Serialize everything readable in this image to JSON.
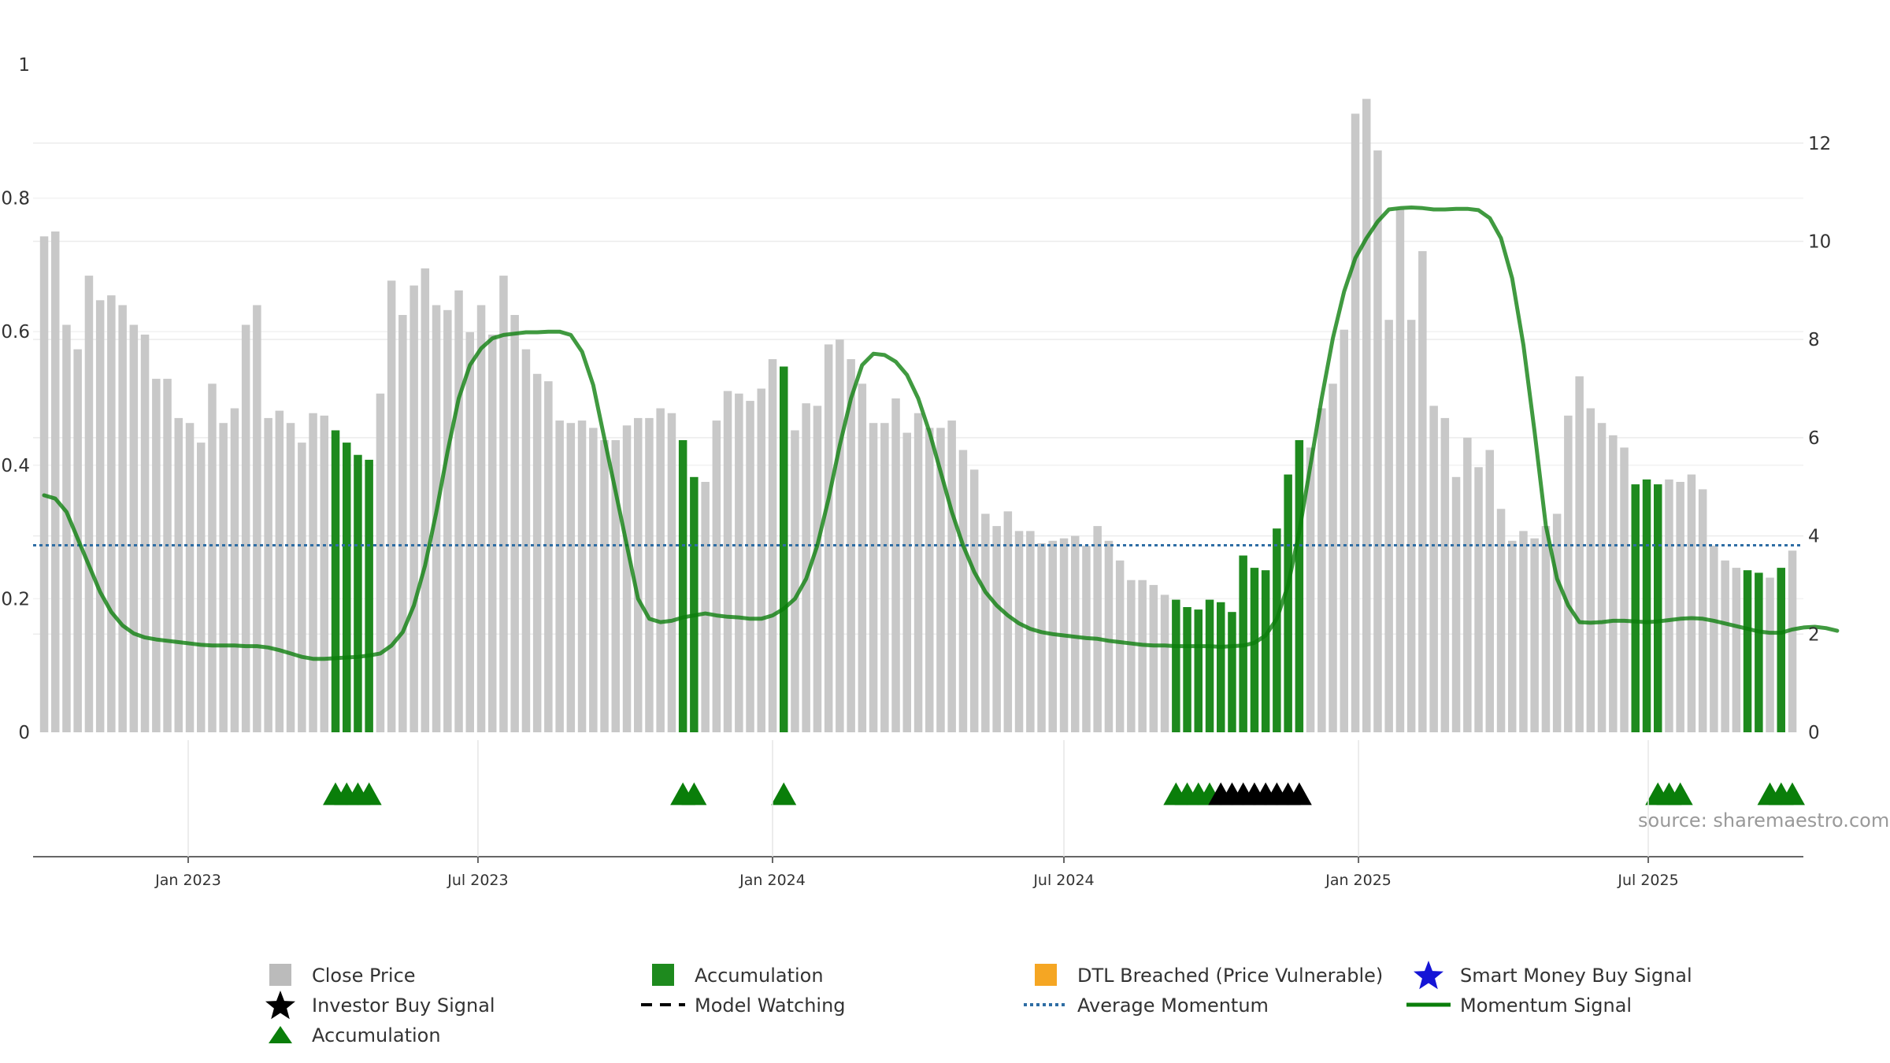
{
  "chart_data": {
    "type": "bar",
    "source": "source: sharemaestro.com",
    "left_axis": {
      "ticks": [
        "0",
        "0.2",
        "0.4",
        "0.6",
        "0.8",
        "1"
      ],
      "range": [
        0,
        1
      ]
    },
    "right_axis": {
      "ticks": [
        "0",
        "2",
        "4",
        "6",
        "8",
        "10",
        "12"
      ],
      "range": [
        0,
        13.6
      ]
    },
    "x_axis": {
      "labels": [
        "Jan 2023",
        "Jul 2023",
        "Jan 2024",
        "Jul 2024",
        "Jan 2025",
        "Jul 2025"
      ],
      "label_dates": [
        "2023-01-01",
        "2023-07-01",
        "2024-01-01",
        "2024-07-01",
        "2025-01-01",
        "2025-07-01"
      ],
      "start": "2022-10-03",
      "weeks": 157
    },
    "series": [
      {
        "name": "Close Price",
        "color": "#c8c8c8",
        "accumulation_color": "#1e8a1e",
        "values": [
          10.1,
          10.2,
          8.3,
          7.8,
          9.3,
          8.8,
          8.9,
          8.7,
          8.3,
          8.1,
          7.2,
          7.2,
          6.4,
          6.3,
          5.9,
          7.1,
          6.3,
          6.6,
          8.3,
          8.7,
          6.4,
          6.55,
          6.3,
          5.9,
          6.5,
          6.45,
          6.15,
          5.9,
          5.65,
          5.55,
          6.9,
          9.2,
          8.5,
          9.1,
          9.45,
          8.7,
          8.6,
          9.0,
          8.15,
          8.7,
          8.1,
          9.3,
          8.5,
          7.8,
          7.3,
          7.15,
          6.35,
          6.3,
          6.35,
          6.2,
          5.95,
          5.95,
          6.25,
          6.4,
          6.4,
          6.6,
          6.5,
          5.95,
          5.2,
          5.1,
          6.35,
          6.95,
          6.9,
          6.75,
          7.0,
          7.6,
          7.45,
          6.15,
          6.7,
          6.65,
          7.9,
          8.0,
          7.6,
          7.1,
          6.3,
          6.3,
          6.8,
          6.1,
          6.5,
          6.2,
          6.2,
          6.35,
          5.75,
          5.35,
          4.45,
          4.2,
          4.5,
          4.1,
          4.1,
          3.85,
          3.9,
          3.95,
          4.0,
          3.8,
          4.2,
          3.9,
          3.5,
          3.1,
          3.1,
          3.0,
          2.8,
          2.7,
          2.55,
          2.5,
          2.7,
          2.65,
          2.45,
          3.6,
          3.35,
          3.3,
          4.15,
          5.25,
          5.95,
          5.8,
          6.6,
          7.1,
          8.2,
          12.6,
          12.9,
          11.85,
          8.4,
          10.65,
          8.4,
          9.8,
          6.65,
          6.4,
          5.2,
          6.0,
          5.4,
          5.75,
          4.55,
          3.9,
          4.1,
          3.95,
          4.2,
          4.45,
          6.45,
          7.25,
          6.6,
          6.3,
          6.05,
          5.8,
          5.05,
          5.15,
          5.05,
          5.15,
          5.1,
          5.25,
          4.95,
          3.8,
          3.5,
          3.35,
          3.3,
          3.25,
          3.15,
          3.35,
          3.7
        ],
        "accumulation_weeks": [
          26,
          27,
          28,
          29,
          57,
          58,
          66,
          101,
          102,
          103,
          104,
          105,
          106,
          107,
          108,
          109,
          110,
          111,
          112,
          142,
          143,
          144,
          152,
          153,
          155
        ]
      },
      {
        "name": "Momentum Signal",
        "color": "#0a7e0a",
        "values": [
          0.355,
          0.35,
          0.33,
          0.29,
          0.25,
          0.21,
          0.18,
          0.16,
          0.148,
          0.142,
          0.139,
          0.137,
          0.135,
          0.133,
          0.131,
          0.13,
          0.13,
          0.13,
          0.129,
          0.129,
          0.127,
          0.123,
          0.118,
          0.113,
          0.11,
          0.11,
          0.111,
          0.112,
          0.113,
          0.115,
          0.118,
          0.13,
          0.15,
          0.19,
          0.25,
          0.33,
          0.42,
          0.5,
          0.55,
          0.575,
          0.59,
          0.595,
          0.597,
          0.599,
          0.599,
          0.6,
          0.6,
          0.595,
          0.57,
          0.52,
          0.44,
          0.36,
          0.28,
          0.2,
          0.17,
          0.165,
          0.167,
          0.172,
          0.175,
          0.178,
          0.175,
          0.173,
          0.172,
          0.17,
          0.17,
          0.175,
          0.185,
          0.2,
          0.23,
          0.28,
          0.35,
          0.43,
          0.5,
          0.55,
          0.567,
          0.565,
          0.555,
          0.535,
          0.5,
          0.45,
          0.39,
          0.33,
          0.28,
          0.24,
          0.21,
          0.19,
          0.175,
          0.163,
          0.155,
          0.15,
          0.147,
          0.145,
          0.143,
          0.141,
          0.14,
          0.137,
          0.135,
          0.133,
          0.131,
          0.13,
          0.13,
          0.129,
          0.129,
          0.129,
          0.129,
          0.128,
          0.129,
          0.13,
          0.134,
          0.145,
          0.17,
          0.22,
          0.3,
          0.4,
          0.5,
          0.59,
          0.66,
          0.71,
          0.74,
          0.765,
          0.783,
          0.785,
          0.786,
          0.785,
          0.783,
          0.783,
          0.784,
          0.784,
          0.782,
          0.77,
          0.74,
          0.68,
          0.58,
          0.45,
          0.31,
          0.23,
          0.19,
          0.165,
          0.164,
          0.165,
          0.167,
          0.167,
          0.166,
          0.165,
          0.166,
          0.168,
          0.17,
          0.171,
          0.17,
          0.167,
          0.163,
          0.159,
          0.155,
          0.151,
          0.149,
          0.149,
          0.154,
          0.157,
          0.158,
          0.156,
          0.152
        ]
      },
      {
        "name": "Average Momentum",
        "color": "#2e6da4",
        "value": 0.28
      }
    ],
    "markers": {
      "accumulation_triangles": [
        26,
        27,
        28,
        29,
        57,
        58,
        66,
        101,
        102,
        103,
        104,
        144,
        145,
        146,
        154,
        155,
        157
      ],
      "investor_buy_stars": [
        105,
        106,
        107,
        108,
        109,
        110,
        111,
        112
      ]
    },
    "legend": [
      {
        "label": "Close Price",
        "symbol": "gray-square",
        "color": "#bbbbbb"
      },
      {
        "label": "Accumulation",
        "symbol": "green-square",
        "color": "#1e8a1e"
      },
      {
        "label": "DTL Breached (Price Vulnerable)",
        "symbol": "orange-square",
        "color": "#f5a623"
      },
      {
        "label": "Smart Money Buy Signal",
        "symbol": "blue-star",
        "color": "#1515d6"
      },
      {
        "label": "Investor Buy Signal",
        "symbol": "black-star",
        "color": "#000000"
      },
      {
        "label": "Model Watching",
        "symbol": "dashed-line",
        "color": "#000000"
      },
      {
        "label": "Average Momentum",
        "symbol": "dotted-line",
        "color": "#2e6da4"
      },
      {
        "label": "Momentum Signal",
        "symbol": "green-line",
        "color": "#0a7e0a"
      },
      {
        "label": "Accumulation",
        "symbol": "green-triangle",
        "color": "#0a7e0a"
      }
    ]
  }
}
